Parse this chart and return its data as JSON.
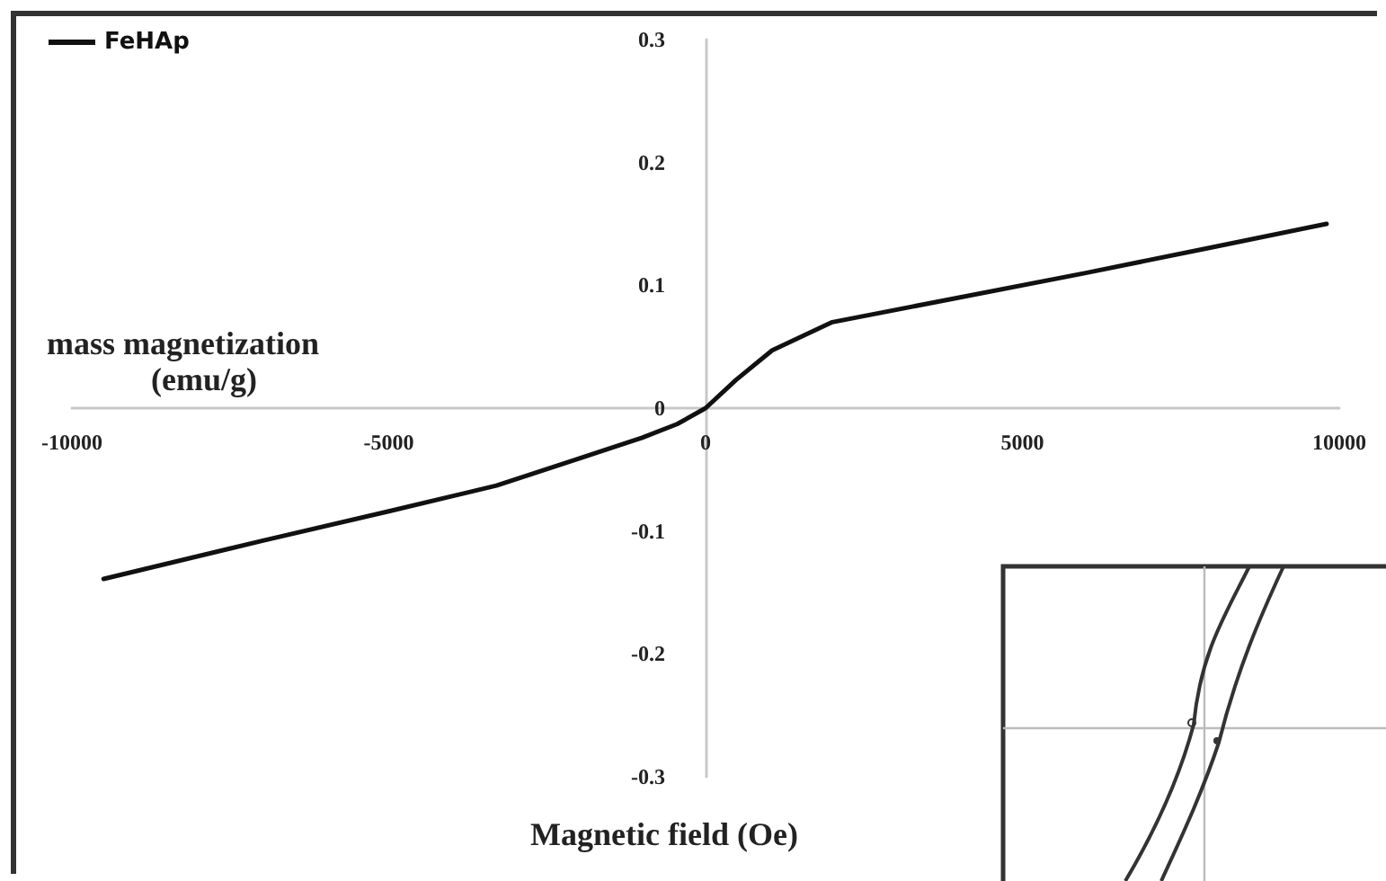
{
  "chart_data": {
    "type": "line",
    "xlabel": "Magnetic field (Oe)",
    "ylabel": "mass magnetization\n(emu/g)",
    "x": [
      -9500,
      -7000,
      -5000,
      -3300,
      -1700,
      -1000,
      -450,
      0,
      480,
      1050,
      2000,
      4000,
      6000,
      8000,
      9800
    ],
    "series": [
      {
        "name": "FeHAp",
        "color": "#111111",
        "values": [
          -0.139,
          -0.108,
          -0.084,
          -0.063,
          -0.036,
          -0.024,
          -0.013,
          0,
          0.023,
          0.047,
          0.07,
          0.09,
          0.11,
          0.131,
          0.15
        ]
      }
    ],
    "xlim": [
      -10000,
      10000
    ],
    "xticks": [
      -10000,
      -5000,
      0,
      5000,
      10000
    ],
    "ylim": [
      -0.3,
      0.3
    ],
    "yticks": [
      -0.3,
      -0.2,
      -0.1,
      0,
      0.1,
      0.2,
      0.3
    ],
    "grid": false,
    "legend": "top left",
    "marker": "none",
    "line_style": "solid"
  }
}
